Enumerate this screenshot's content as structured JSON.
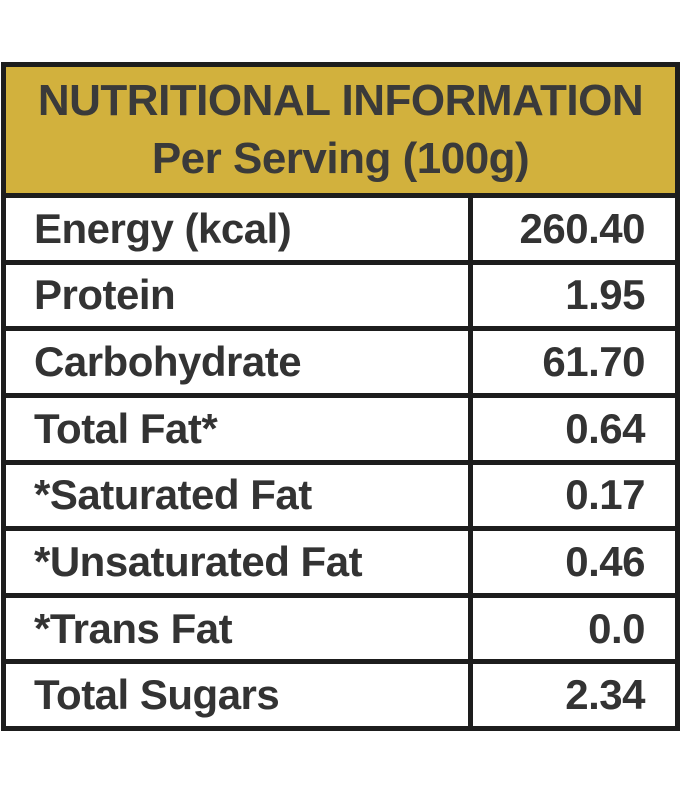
{
  "header": {
    "line1": "NUTRITIONAL INFORMATION",
    "line2": "Per Serving (100g)"
  },
  "rows": [
    {
      "label": "Energy (kcal)",
      "value": "260.40"
    },
    {
      "label": "Protein",
      "value": "1.95"
    },
    {
      "label": "Carbohydrate",
      "value": "61.70"
    },
    {
      "label": "Total Fat*",
      "value": "0.64"
    },
    {
      "label": "*Saturated Fat",
      "value": "0.17"
    },
    {
      "label": "*Unsaturated Fat",
      "value": "0.46"
    },
    {
      "label": "*Trans Fat",
      "value": "0.0"
    },
    {
      "label": "Total Sugars",
      "value": "2.34"
    }
  ],
  "colors": {
    "header-bg": "#d2b13d",
    "header-text": "#3a3a3a",
    "row-text": "#333333",
    "border": "#1d1d1d",
    "page-bg": "#ffffff"
  }
}
